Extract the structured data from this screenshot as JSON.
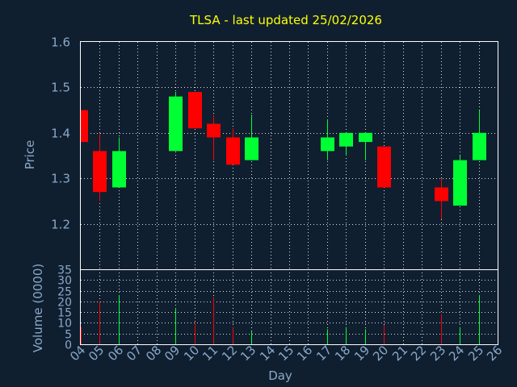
{
  "chart_data": {
    "type": "candlestick",
    "title": "TLSA - last updated 25/02/2026",
    "colors": {
      "up": "#00ff33",
      "down": "#ff0000",
      "background": "#0f1f30",
      "title": "#ffff00",
      "text": "#8aa8c8",
      "grid": "#ffffff"
    },
    "x_ticks": [
      "04",
      "05",
      "06",
      "07",
      "08",
      "09",
      "10",
      "11",
      "12",
      "13",
      "14",
      "15",
      "16",
      "17",
      "18",
      "19",
      "20",
      "21",
      "22",
      "23",
      "24",
      "25",
      "26"
    ],
    "xlabel": "Day",
    "price_panel": {
      "ylabel": "Price",
      "ylim": [
        1.1,
        1.6
      ],
      "y_ticks": [
        "1.2",
        "1.3",
        "1.4",
        "1.5",
        "1.6"
      ],
      "grid": true
    },
    "volume_panel": {
      "ylabel": "Volume (0000)",
      "ylim": [
        0,
        35
      ],
      "y_ticks": [
        "0",
        "5",
        "10",
        "15",
        "20",
        "25",
        "30",
        "35"
      ],
      "grid": true
    },
    "candles": [
      {
        "day": 4,
        "open": 1.45,
        "high": 1.45,
        "low": 1.38,
        "close": 1.38,
        "volume": 8
      },
      {
        "day": 5,
        "open": 1.36,
        "high": 1.4,
        "low": 1.25,
        "close": 1.27,
        "volume": 20
      },
      {
        "day": 6,
        "open": 1.28,
        "high": 1.39,
        "low": 1.28,
        "close": 1.36,
        "volume": 23
      },
      {
        "day": 9,
        "open": 1.36,
        "high": 1.49,
        "low": 1.36,
        "close": 1.48,
        "volume": 17
      },
      {
        "day": 10,
        "open": 1.49,
        "high": 1.49,
        "low": 1.41,
        "close": 1.41,
        "volume": 10
      },
      {
        "day": 11,
        "open": 1.42,
        "high": 1.44,
        "low": 1.34,
        "close": 1.39,
        "volume": 22
      },
      {
        "day": 12,
        "open": 1.39,
        "high": 1.41,
        "low": 1.33,
        "close": 1.33,
        "volume": 8
      },
      {
        "day": 13,
        "open": 1.34,
        "high": 1.44,
        "low": 1.34,
        "close": 1.39,
        "volume": 6
      },
      {
        "day": 17,
        "open": 1.36,
        "high": 1.43,
        "low": 1.34,
        "close": 1.39,
        "volume": 7
      },
      {
        "day": 18,
        "open": 1.37,
        "high": 1.4,
        "low": 1.35,
        "close": 1.4,
        "volume": 8
      },
      {
        "day": 19,
        "open": 1.38,
        "high": 1.4,
        "low": 1.34,
        "close": 1.4,
        "volume": 7
      },
      {
        "day": 20,
        "open": 1.37,
        "high": 1.37,
        "low": 1.28,
        "close": 1.28,
        "volume": 9
      },
      {
        "day": 23,
        "open": 1.28,
        "high": 1.3,
        "low": 1.21,
        "close": 1.25,
        "volume": 14
      },
      {
        "day": 24,
        "open": 1.24,
        "high": 1.35,
        "low": 1.24,
        "close": 1.34,
        "volume": 8
      },
      {
        "day": 25,
        "open": 1.34,
        "high": 1.45,
        "low": 1.34,
        "close": 1.4,
        "volume": 23
      }
    ]
  }
}
